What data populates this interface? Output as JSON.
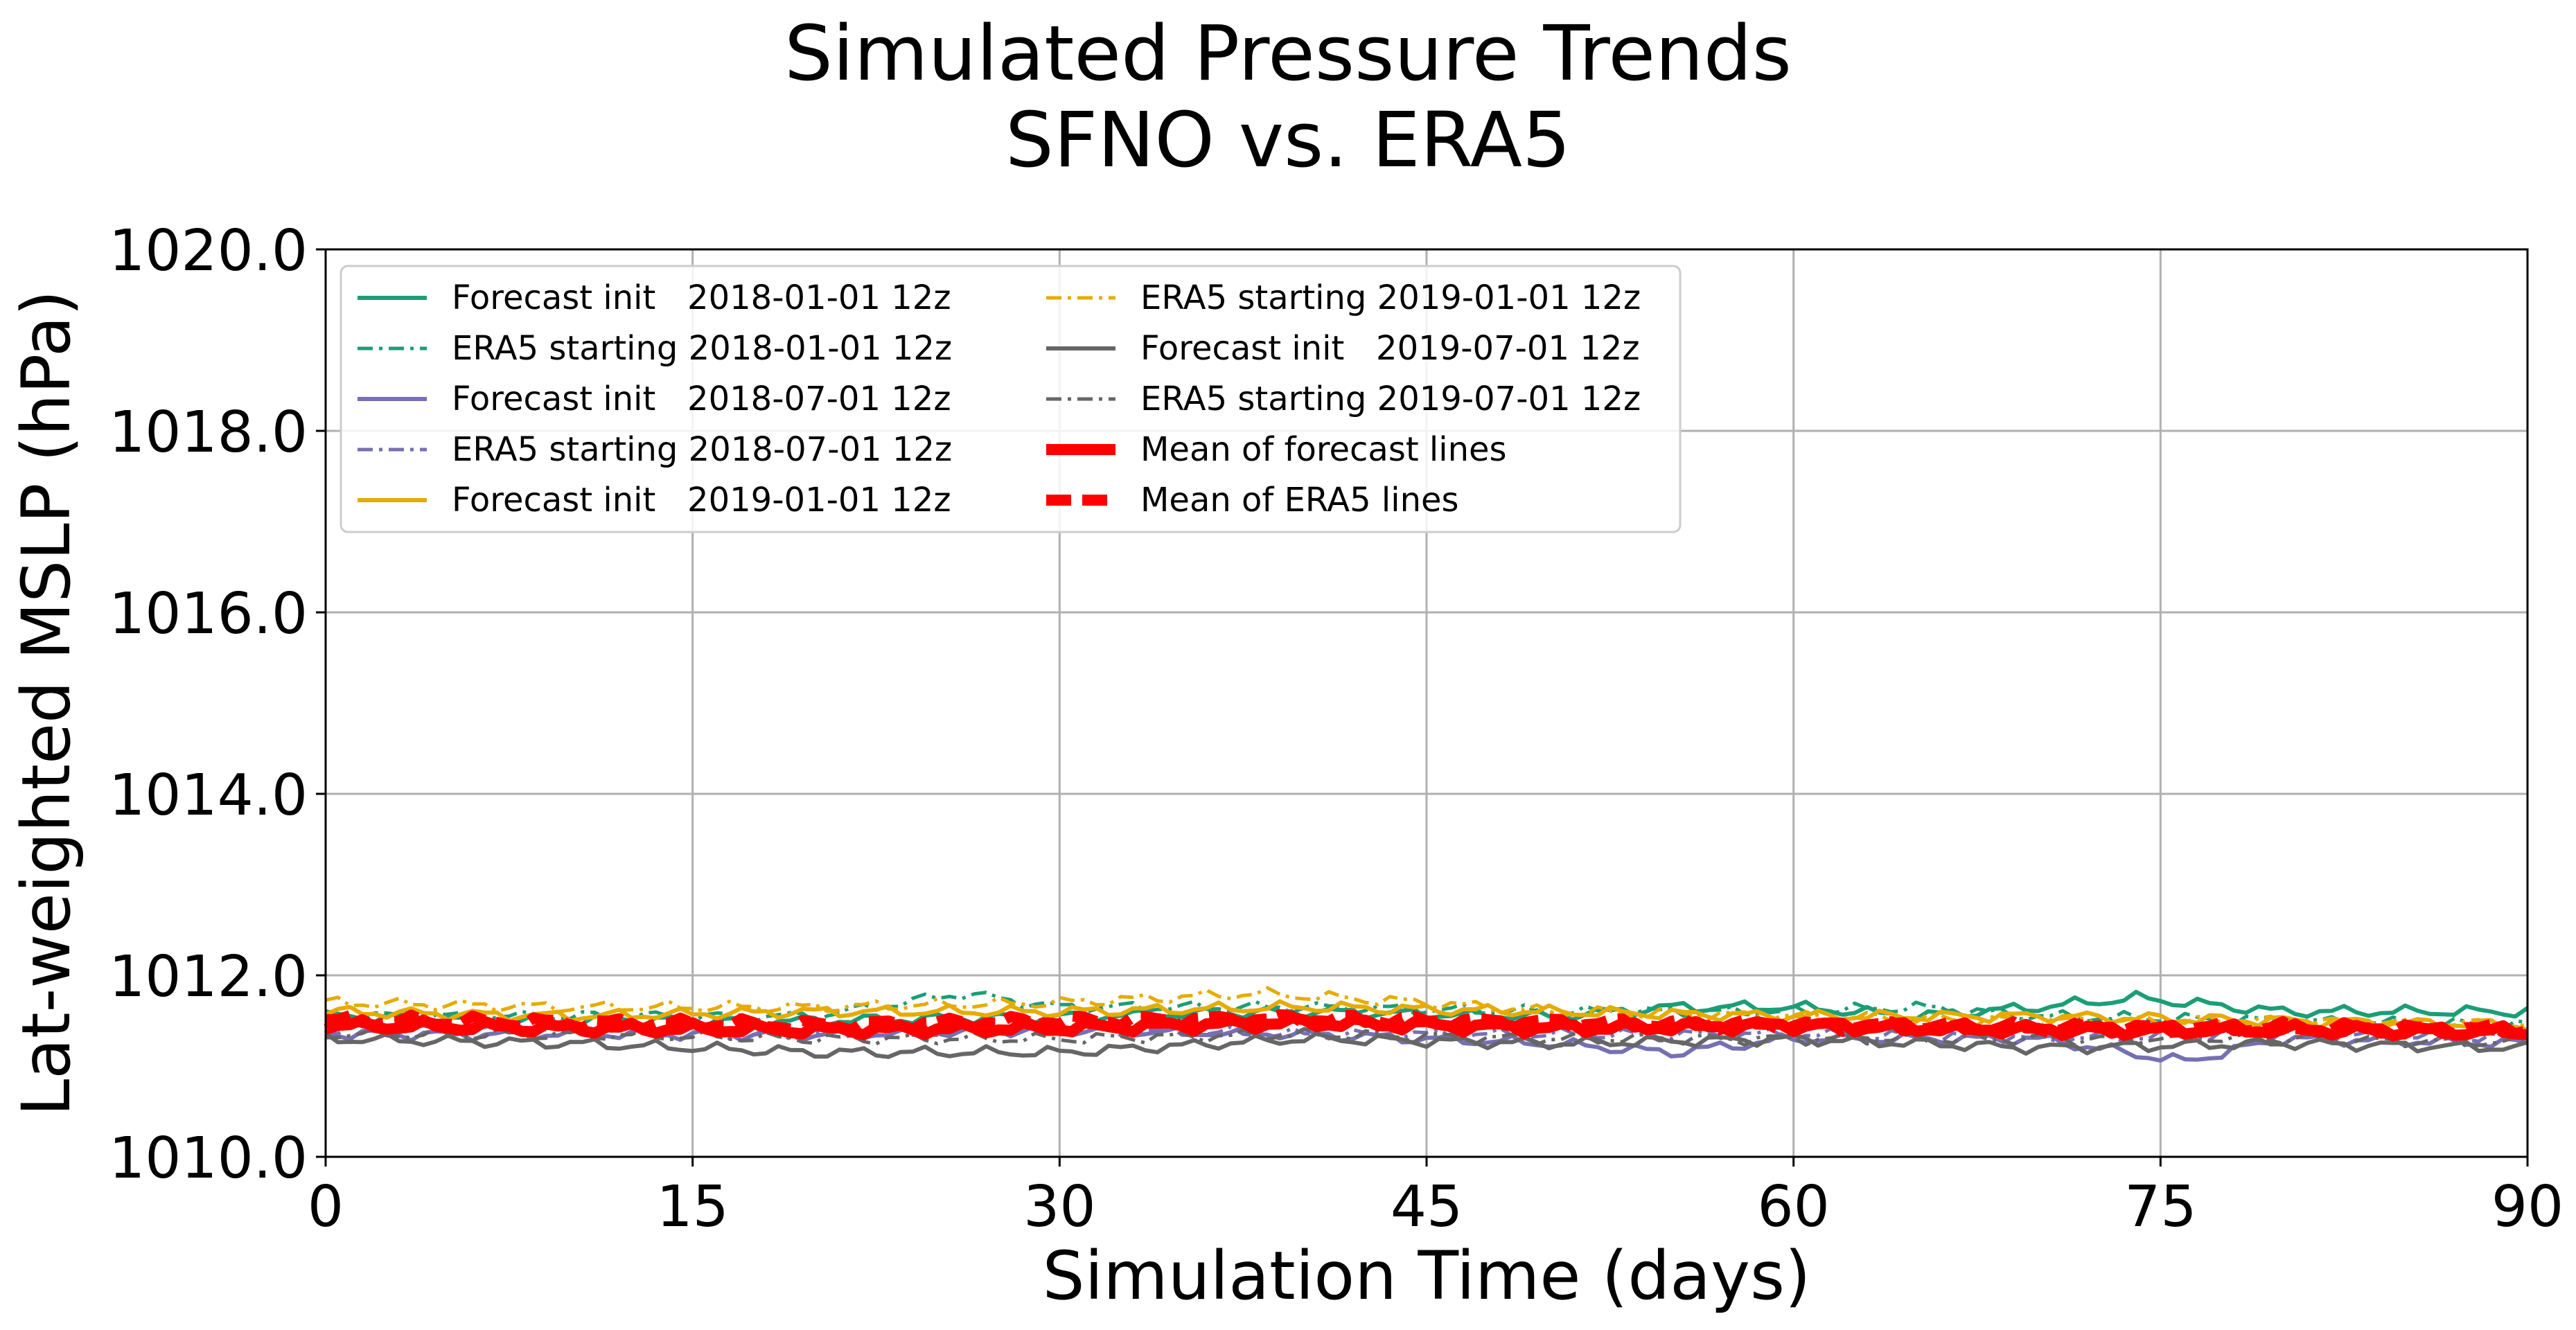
{
  "chart_data": {
    "type": "line",
    "title": "Simulated Pressure Trends",
    "subtitle": "SFNO vs. ERA5",
    "xlabel": "Simulation Time (days)",
    "ylabel": "Lat-weighted MSLP (hPa)",
    "xlim": [
      0,
      90
    ],
    "ylim": [
      1010.0,
      1020.0
    ],
    "xticks": [
      0,
      15,
      30,
      45,
      60,
      75,
      90
    ],
    "yticks": [
      1010.0,
      1012.0,
      1014.0,
      1016.0,
      1018.0,
      1020.0
    ],
    "xtick_labels": [
      "0",
      "15",
      "30",
      "45",
      "60",
      "75",
      "90"
    ],
    "ytick_labels": [
      "1010.0",
      "1012.0",
      "1014.0",
      "1016.0",
      "1018.0",
      "1020.0"
    ],
    "grid": true,
    "legend_position": "top-left",
    "legend_columns": 2,
    "series": [
      {
        "name": "Forecast init   2018-01-01 12z",
        "color": "#1b9e77",
        "style": "solid",
        "x": [
          0,
          10,
          20,
          30,
          40,
          50,
          55,
          60,
          65,
          70,
          74,
          80,
          85,
          90
        ],
        "y": [
          1011.55,
          1011.5,
          1011.5,
          1011.55,
          1011.6,
          1011.55,
          1011.65,
          1011.65,
          1011.55,
          1011.65,
          1011.75,
          1011.6,
          1011.6,
          1011.6
        ]
      },
      {
        "name": "ERA5 starting 2018-01-01 12z",
        "color": "#1b9e77",
        "style": "dashdot",
        "x": [
          0,
          10,
          20,
          26,
          30,
          40,
          50,
          60,
          65,
          70,
          80,
          90
        ],
        "y": [
          1011.55,
          1011.55,
          1011.55,
          1011.8,
          1011.65,
          1011.65,
          1011.6,
          1011.6,
          1011.65,
          1011.55,
          1011.5,
          1011.45
        ]
      },
      {
        "name": "Forecast init   2018-07-01 12z",
        "color": "#7570b3",
        "style": "solid",
        "x": [
          0,
          10,
          20,
          30,
          40,
          50,
          55,
          60,
          70,
          76,
          80,
          90
        ],
        "y": [
          1011.35,
          1011.35,
          1011.35,
          1011.4,
          1011.35,
          1011.25,
          1011.15,
          1011.3,
          1011.3,
          1011.05,
          1011.3,
          1011.25
        ]
      },
      {
        "name": "ERA5 starting 2018-07-01 12z",
        "color": "#7570b3",
        "style": "dashdot",
        "x": [
          0,
          10,
          20,
          30,
          40,
          50,
          60,
          70,
          80,
          90
        ],
        "y": [
          1011.4,
          1011.4,
          1011.35,
          1011.4,
          1011.35,
          1011.35,
          1011.35,
          1011.3,
          1011.35,
          1011.3
        ]
      },
      {
        "name": "Forecast init   2019-01-01 12z",
        "color": "#e6ab02",
        "style": "solid",
        "x": [
          0,
          10,
          20,
          30,
          40,
          50,
          60,
          70,
          80,
          90
        ],
        "y": [
          1011.6,
          1011.55,
          1011.6,
          1011.6,
          1011.65,
          1011.6,
          1011.55,
          1011.55,
          1011.5,
          1011.45
        ]
      },
      {
        "name": "ERA5 starting 2019-01-01 12z",
        "color": "#e6ab02",
        "style": "dashdot",
        "x": [
          0,
          10,
          20,
          30,
          38,
          45,
          50,
          60,
          70,
          80,
          90
        ],
        "y": [
          1011.7,
          1011.65,
          1011.65,
          1011.7,
          1011.8,
          1011.7,
          1011.6,
          1011.55,
          1011.5,
          1011.5,
          1011.45
        ]
      },
      {
        "name": "Forecast init   2019-07-01 12z",
        "color": "#666666",
        "style": "solid",
        "x": [
          0,
          10,
          20,
          30,
          40,
          50,
          60,
          70,
          80,
          90
        ],
        "y": [
          1011.3,
          1011.25,
          1011.15,
          1011.15,
          1011.3,
          1011.25,
          1011.3,
          1011.2,
          1011.25,
          1011.2
        ]
      },
      {
        "name": "ERA5 starting 2019-07-01 12z",
        "color": "#666666",
        "style": "dashdot",
        "x": [
          0,
          10,
          20,
          30,
          40,
          50,
          60,
          70,
          80,
          90
        ],
        "y": [
          1011.35,
          1011.35,
          1011.3,
          1011.3,
          1011.35,
          1011.3,
          1011.3,
          1011.3,
          1011.3,
          1011.25
        ]
      },
      {
        "name": "Mean of forecast lines",
        "color": "#ff0000",
        "style": "solid-thick",
        "x": [
          0,
          10,
          20,
          30,
          40,
          50,
          60,
          70,
          80,
          90
        ],
        "y": [
          1011.45,
          1011.42,
          1011.4,
          1011.42,
          1011.48,
          1011.42,
          1011.45,
          1011.4,
          1011.4,
          1011.38
        ]
      },
      {
        "name": "Mean of ERA5 lines",
        "color": "#ff0000",
        "style": "dashed-thick",
        "x": [
          0,
          10,
          20,
          30,
          40,
          50,
          60,
          70,
          80,
          90
        ],
        "y": [
          1011.5,
          1011.48,
          1011.45,
          1011.5,
          1011.52,
          1011.48,
          1011.45,
          1011.42,
          1011.42,
          1011.4
        ]
      }
    ]
  }
}
